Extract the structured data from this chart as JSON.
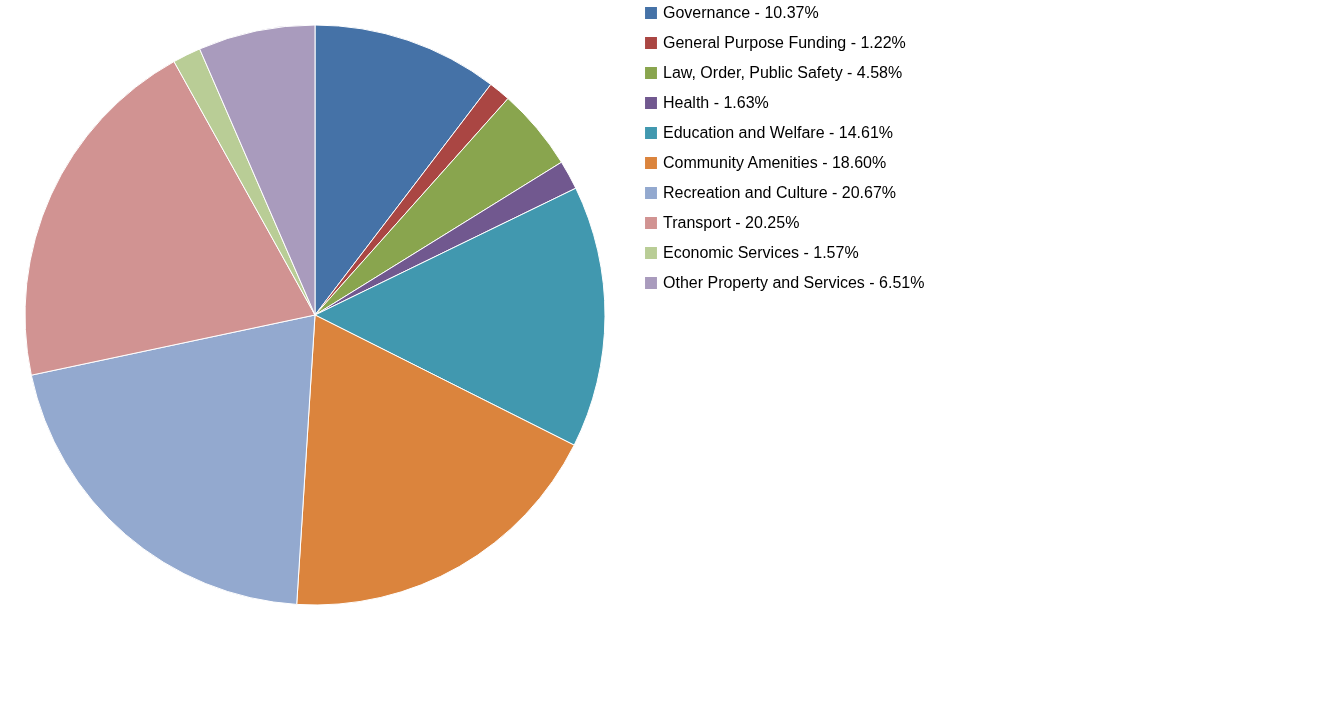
{
  "chart_data": {
    "type": "pie",
    "categories": [
      "Governance - 10.37%",
      "General Purpose Funding - 1.22%",
      "Law, Order, Public Safety - 4.58%",
      "Health - 1.63%",
      "Education and Welfare - 14.61%",
      "Community Amenities - 18.60%",
      "Recreation and Culture - 20.67%",
      "Transport - 20.25%",
      "Economic Services - 1.57%",
      "Other Property and Services - 6.51%"
    ],
    "values": [
      10.37,
      1.22,
      4.58,
      1.63,
      14.61,
      18.6,
      20.67,
      20.25,
      1.57,
      6.51
    ],
    "colors": [
      "#4572a7",
      "#aa4643",
      "#89a54e",
      "#71588f",
      "#4198af",
      "#db843d",
      "#93a9cf",
      "#d19392",
      "#b9cd96",
      "#a99bbd"
    ],
    "legend": "right"
  }
}
